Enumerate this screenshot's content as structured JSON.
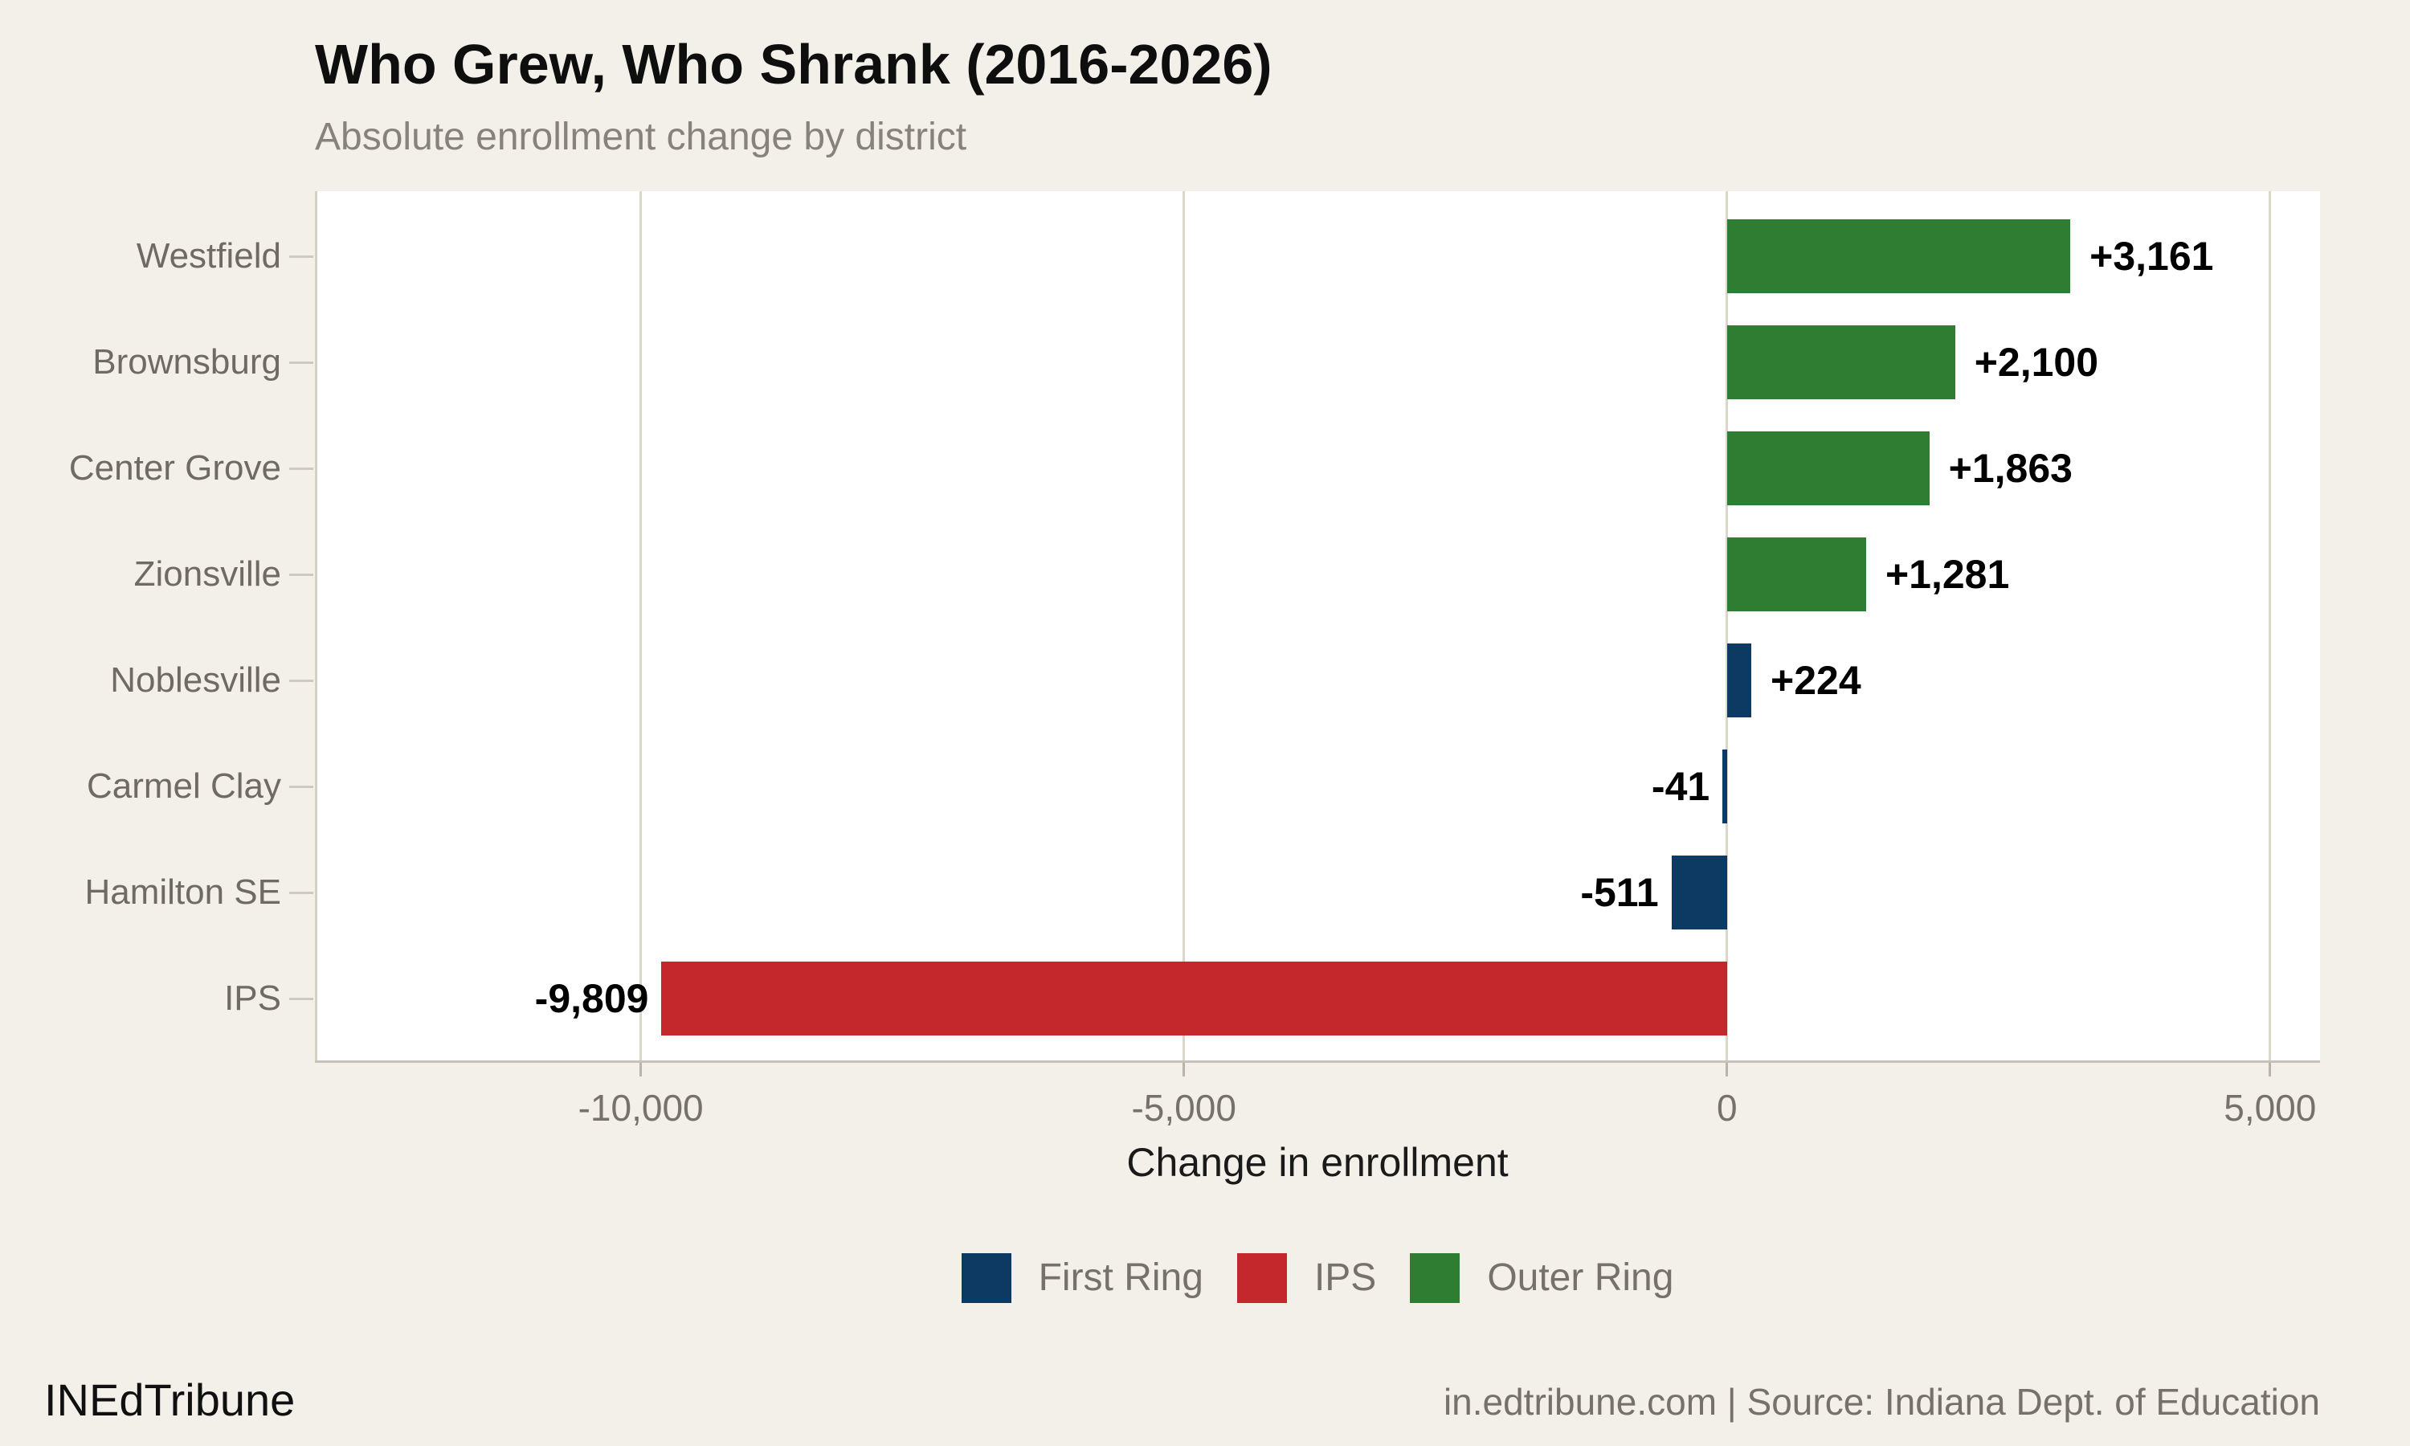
{
  "header": {
    "title": "Who Grew, Who Shrank (2016-2026)",
    "subtitle": "Absolute enrollment change by district"
  },
  "chart_data": {
    "type": "bar",
    "orientation": "horizontal",
    "title": "Who Grew, Who Shrank (2016-2026)",
    "subtitle": "Absolute enrollment change by district",
    "xlabel": "Change in enrollment",
    "xlim": [
      -13000,
      5460
    ],
    "grid": true,
    "legend_position": "bottom-center",
    "categories": [
      "Westfield",
      "Brownsburg",
      "Center Grove",
      "Zionsville",
      "Noblesville",
      "Carmel Clay",
      "Hamilton SE",
      "IPS"
    ],
    "values": [
      3161,
      2100,
      1863,
      1281,
      224,
      -41,
      -511,
      -9809
    ],
    "value_labels": [
      "+3,161",
      "+2,100",
      "+1,863",
      "+1,281",
      "+224",
      "-41",
      "-511",
      "-9,809"
    ],
    "groups": [
      "Outer Ring",
      "Outer Ring",
      "Outer Ring",
      "Outer Ring",
      "First Ring",
      "First Ring",
      "First Ring",
      "IPS"
    ],
    "group_colors": {
      "First Ring": "#0d3a63",
      "IPS": "#c5282c",
      "Outer Ring": "#2e7d32"
    },
    "x_ticks": [
      {
        "value": -10000,
        "label": "-10,000"
      },
      {
        "value": -5000,
        "label": "-5,000"
      },
      {
        "value": 0,
        "label": "0"
      },
      {
        "value": 5000,
        "label": "5,000"
      }
    ],
    "legend": [
      {
        "label": "First Ring",
        "color": "#0d3a63"
      },
      {
        "label": "IPS",
        "color": "#c5282c"
      },
      {
        "label": "Outer Ring",
        "color": "#2e7d32"
      }
    ],
    "colors": {
      "background": "#f2f0e9",
      "plot_background": "#ffffff",
      "gridline": "#dad6cc",
      "axis_line": "#c7c2b8",
      "label_gray": "#6f6b63",
      "value_label": "#000000"
    }
  },
  "footer": {
    "brand": "INEdTribune",
    "attribution": "in.edtribune.com | Source: Indiana Dept. of Education"
  }
}
